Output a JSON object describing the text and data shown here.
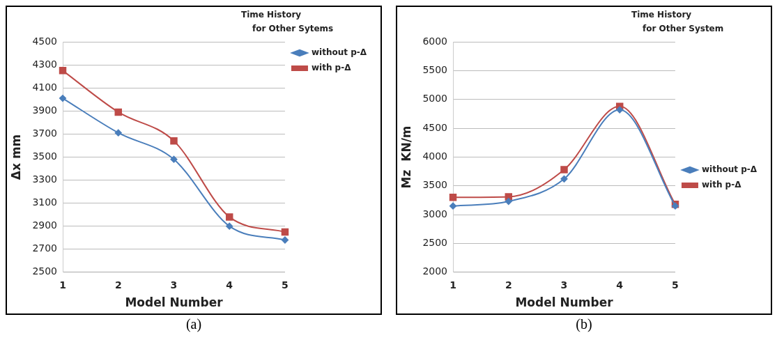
{
  "chart_data": [
    {
      "type": "line",
      "title": "Time History for Other Sytems",
      "xlabel": "Model Number",
      "ylabel": "Δx mm",
      "categories": [
        "1",
        "2",
        "3",
        "4",
        "5"
      ],
      "series": [
        {
          "name": "without p-Δ",
          "color": "#4a7ebb",
          "marker": "diamond",
          "values": [
            4010,
            3710,
            3480,
            2900,
            2780
          ]
        },
        {
          "name": "with p-Δ",
          "color": "#be4b48",
          "marker": "square",
          "values": [
            4250,
            3890,
            3640,
            2980,
            2850
          ]
        }
      ],
      "ylim": [
        2500,
        4500
      ],
      "yticks": [
        2500,
        2700,
        2900,
        3100,
        3300,
        3500,
        3700,
        3900,
        4100,
        4300,
        4500
      ],
      "grid": "y",
      "legend": "top right",
      "annotations": [
        "(a)"
      ]
    },
    {
      "type": "line",
      "title": "Time History for Other System",
      "xlabel": "Model Number",
      "ylabel": "Mz  KN/m",
      "categories": [
        "1",
        "2",
        "3",
        "4",
        "5"
      ],
      "series": [
        {
          "name": "without p-Δ",
          "color": "#4a7ebb",
          "marker": "diamond",
          "values": [
            3150,
            3230,
            3620,
            4820,
            3150
          ]
        },
        {
          "name": "with p-Δ",
          "color": "#be4b48",
          "marker": "square",
          "values": [
            3300,
            3310,
            3780,
            4880,
            3180
          ]
        }
      ],
      "ylim": [
        2000,
        6000
      ],
      "yticks": [
        2000,
        2500,
        3000,
        3500,
        4000,
        4500,
        5000,
        5500,
        6000
      ],
      "grid": "y",
      "legend": "right",
      "annotations": [
        "(b)"
      ]
    }
  ]
}
